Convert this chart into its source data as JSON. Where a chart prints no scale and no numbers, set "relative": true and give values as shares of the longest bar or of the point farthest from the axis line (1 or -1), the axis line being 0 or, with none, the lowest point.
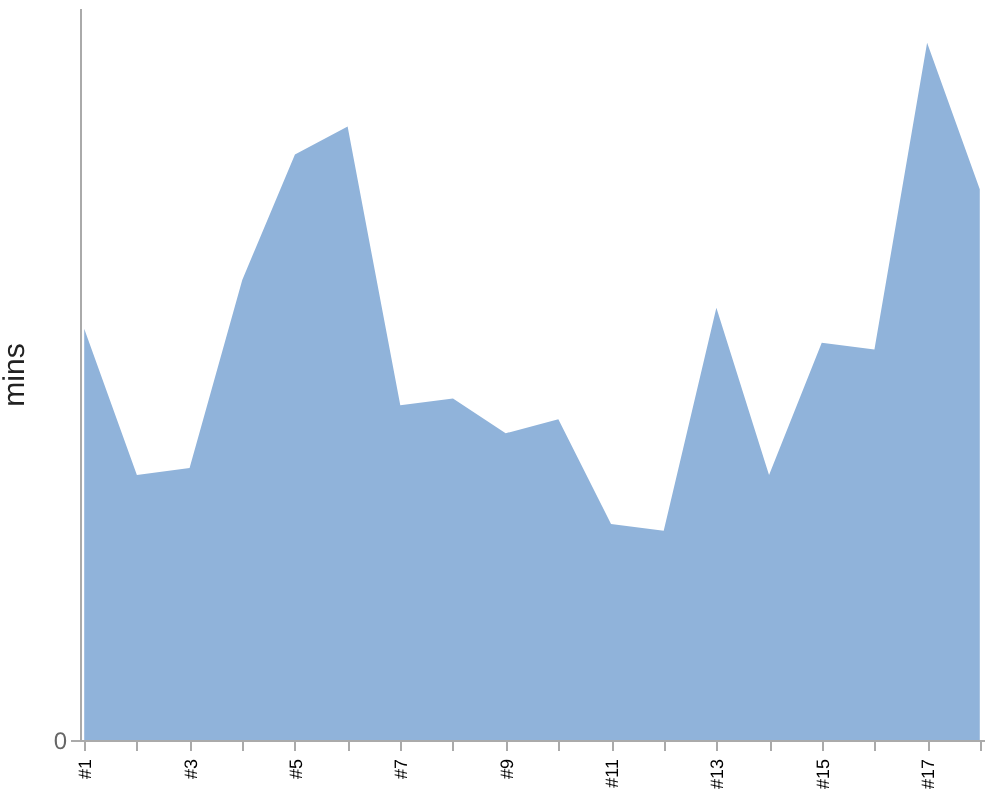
{
  "chart_data": {
    "type": "area",
    "ylabel": "mins",
    "categories": [
      "#1",
      null,
      "#3",
      null,
      "#5",
      null,
      "#7",
      null,
      "#9",
      null,
      "#11",
      null,
      "#13",
      null,
      "#15",
      null,
      "#17",
      null
    ],
    "values": [
      0.59,
      0.38,
      0.39,
      0.66,
      0.84,
      0.88,
      0.48,
      0.49,
      0.44,
      0.46,
      0.31,
      0.3,
      0.62,
      0.38,
      0.57,
      0.56,
      1,
      0.79
    ],
    "color": "#90b3da",
    "relative": true,
    "annotations": [
      "0"
    ]
  }
}
